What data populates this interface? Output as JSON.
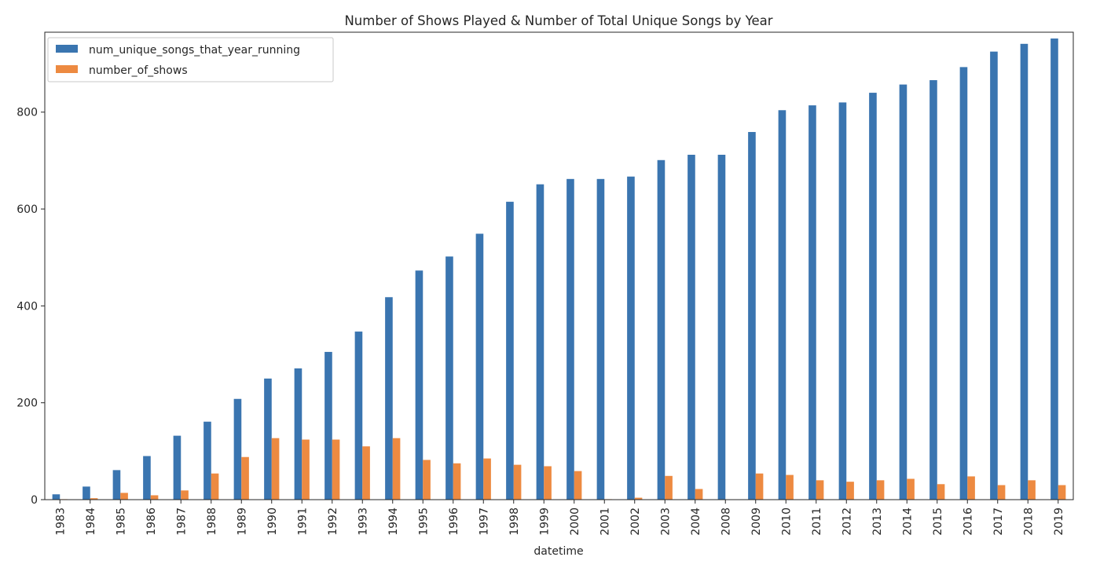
{
  "chart_data": {
    "type": "bar",
    "title": "Number of Shows Played & Number of Total Unique Songs by Year",
    "xlabel": "datetime",
    "ylabel": "",
    "ylim": [
      0,
      965
    ],
    "yticks": [
      0,
      200,
      400,
      600,
      800
    ],
    "grid": false,
    "legend_position": "top-left",
    "categories": [
      "1983",
      "1984",
      "1985",
      "1986",
      "1987",
      "1988",
      "1989",
      "1990",
      "1991",
      "1992",
      "1993",
      "1994",
      "1995",
      "1996",
      "1997",
      "1998",
      "1999",
      "2000",
      "2001",
      "2002",
      "2003",
      "2004",
      "2008",
      "2009",
      "2010",
      "2011",
      "2012",
      "2013",
      "2014",
      "2015",
      "2016",
      "2017",
      "2018",
      "2019"
    ],
    "series": [
      {
        "name": "num_unique_songs_that_year_running",
        "color": "#3a75b0",
        "values": [
          11,
          27,
          61,
          90,
          132,
          161,
          208,
          250,
          271,
          305,
          347,
          418,
          473,
          502,
          549,
          615,
          651,
          662,
          662,
          667,
          701,
          712,
          712,
          759,
          804,
          814,
          820,
          840,
          857,
          866,
          893,
          925,
          941,
          952
        ]
      },
      {
        "name": "number_of_shows",
        "color": "#ed8a41",
        "values": [
          1,
          3,
          14,
          9,
          19,
          54,
          88,
          127,
          124,
          124,
          110,
          127,
          82,
          75,
          85,
          72,
          69,
          59,
          1,
          4,
          49,
          22,
          0,
          54,
          51,
          40,
          37,
          40,
          43,
          32,
          48,
          30,
          40,
          30
        ]
      }
    ]
  }
}
